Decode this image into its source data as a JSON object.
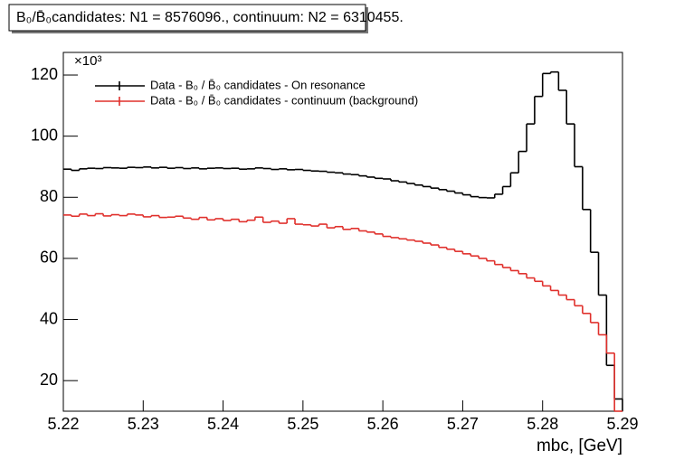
{
  "chart_data": {
    "type": "histogram",
    "title": "B₀/B̄₀candidates: N1 = 8576096., continuum: N2 = 6310455.",
    "xlabel": "mbc, [GeV]",
    "y_scale_label": "×10³",
    "bins": [
      5.22,
      5.221,
      5.222,
      5.223,
      5.224,
      5.225,
      5.226,
      5.227,
      5.228,
      5.229,
      5.23,
      5.231,
      5.232,
      5.233,
      5.234,
      5.235,
      5.236,
      5.237,
      5.238,
      5.239,
      5.24,
      5.241,
      5.242,
      5.243,
      5.244,
      5.245,
      5.246,
      5.247,
      5.248,
      5.249,
      5.25,
      5.251,
      5.252,
      5.253,
      5.254,
      5.255,
      5.256,
      5.257,
      5.258,
      5.259,
      5.26,
      5.261,
      5.262,
      5.263,
      5.264,
      5.265,
      5.266,
      5.267,
      5.268,
      5.269,
      5.27,
      5.271,
      5.272,
      5.273,
      5.274,
      5.275,
      5.276,
      5.277,
      5.278,
      5.279,
      5.28,
      5.281,
      5.282,
      5.283,
      5.284,
      5.285,
      5.286,
      5.287,
      5.288,
      5.289,
      5.29
    ],
    "series": [
      {
        "name": "Data - B₀ / B̄₀ candidates - On resonance",
        "color": "#000000",
        "values": [
          89.2,
          88.8,
          89.3,
          89.5,
          89.4,
          89.7,
          89.6,
          89.5,
          89.8,
          89.7,
          89.9,
          89.6,
          89.8,
          89.5,
          89.7,
          89.4,
          89.6,
          89.3,
          89.5,
          89.6,
          89.4,
          89.5,
          89.2,
          89.3,
          89.6,
          89.4,
          89.1,
          89.3,
          89.0,
          89.1,
          88.8,
          88.6,
          88.5,
          88.2,
          88.0,
          87.6,
          87.4,
          87.0,
          86.6,
          86.2,
          86.0,
          85.4,
          85.0,
          84.5,
          84.0,
          83.5,
          83.0,
          82.5,
          82.0,
          81.4,
          80.8,
          80.2,
          79.9,
          79.8,
          81.0,
          83.5,
          88.0,
          95.0,
          104.0,
          113.0,
          120.5,
          121.0,
          115.0,
          104.0,
          90.0,
          76.0,
          62.0,
          48.0,
          25.0,
          14.0
        ]
      },
      {
        "name": "Data - B₀ / B̄₀ candidates - continuum (background)",
        "color": "#e0302c",
        "values": [
          74.2,
          73.8,
          74.5,
          74.0,
          74.6,
          73.9,
          74.3,
          74.0,
          74.5,
          74.2,
          73.6,
          74.0,
          73.4,
          73.5,
          73.8,
          73.2,
          72.8,
          73.4,
          72.6,
          73.0,
          72.4,
          72.8,
          72.0,
          72.5,
          73.5,
          71.8,
          72.2,
          71.5,
          73.0,
          71.2,
          71.0,
          70.6,
          71.2,
          70.0,
          70.4,
          69.5,
          69.8,
          69.0,
          68.6,
          68.0,
          67.2,
          66.8,
          66.4,
          66.0,
          65.6,
          65.0,
          64.4,
          63.6,
          63.0,
          62.3,
          61.5,
          60.8,
          60.0,
          59.2,
          58.0,
          57.0,
          56.0,
          55.0,
          53.6,
          52.5,
          51.0,
          49.5,
          48.0,
          46.5,
          44.5,
          42.0,
          39.0,
          35.0,
          29.0,
          10.0
        ]
      }
    ],
    "xlim": [
      5.22,
      5.29
    ],
    "xticks": [
      5.22,
      5.23,
      5.24,
      5.25,
      5.26,
      5.27,
      5.28,
      5.29
    ],
    "ylim": [
      10,
      127.4
    ],
    "yticks": [
      20,
      40,
      60,
      80,
      100,
      120
    ],
    "legend": "upper left"
  }
}
